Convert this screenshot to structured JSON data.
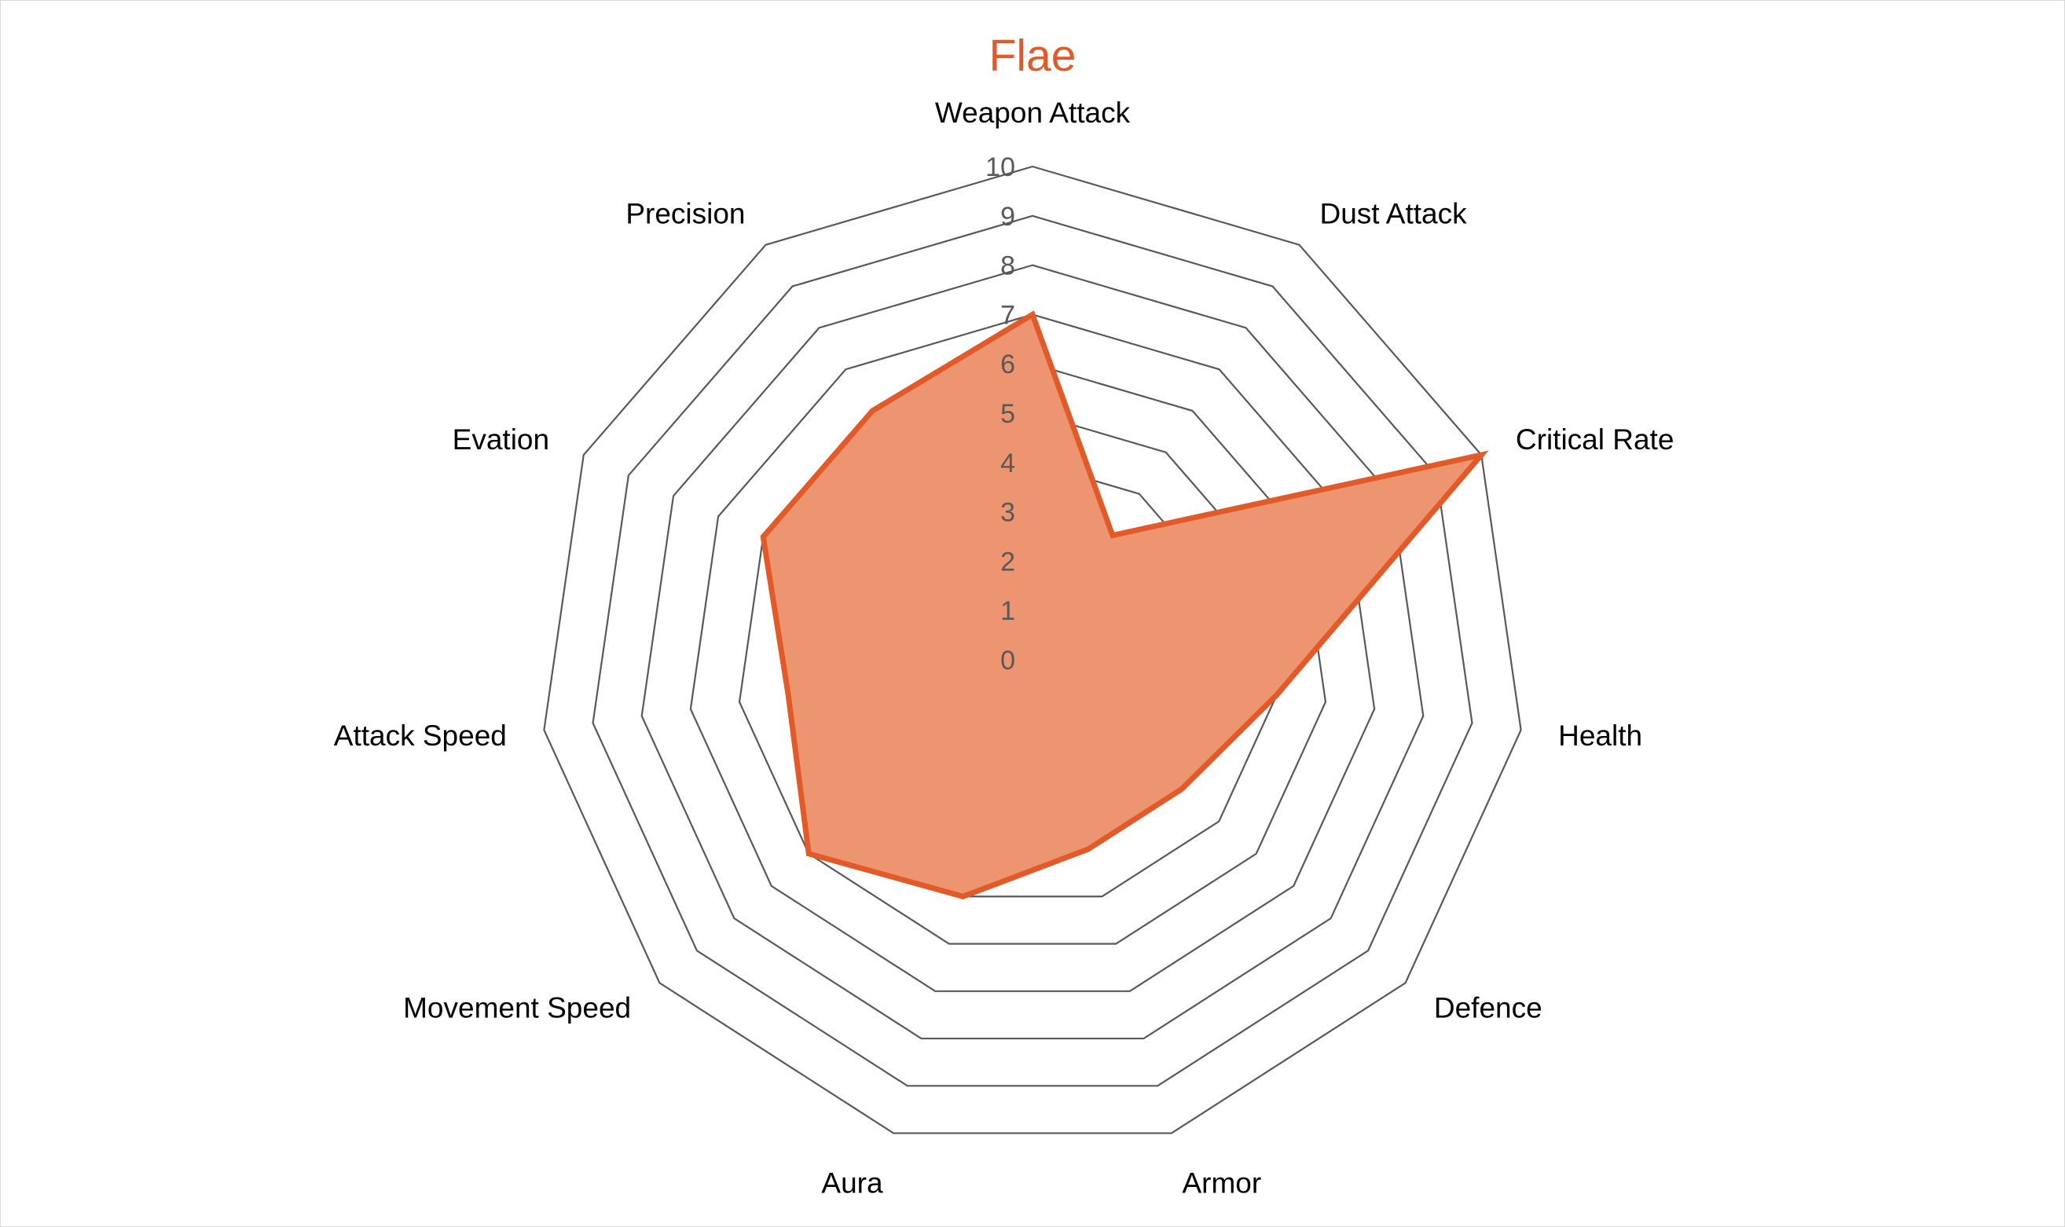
{
  "chart_data": {
    "type": "radar",
    "title": "Flae",
    "categories": [
      "Weapon Attack",
      "Dust Attack",
      "Critical Rate",
      "Health",
      "Defence",
      "Armor",
      "Aura",
      "Movement Speed",
      "Attack Speed",
      "Evation",
      "Precision"
    ],
    "series": [
      {
        "values": [
          7,
          3,
          10,
          5,
          4,
          4,
          5,
          6,
          5,
          6,
          6
        ]
      }
    ],
    "rlim": [
      0,
      10
    ],
    "ticks": [
      "0",
      "1",
      "2",
      "3",
      "4",
      "5",
      "6",
      "7",
      "8",
      "9",
      "10"
    ],
    "grid": true,
    "legend": "none",
    "colors": {
      "series_line": "#e35a29",
      "series_fill": "#ed9470",
      "grid": "#595959",
      "title": "#e35a29"
    }
  }
}
